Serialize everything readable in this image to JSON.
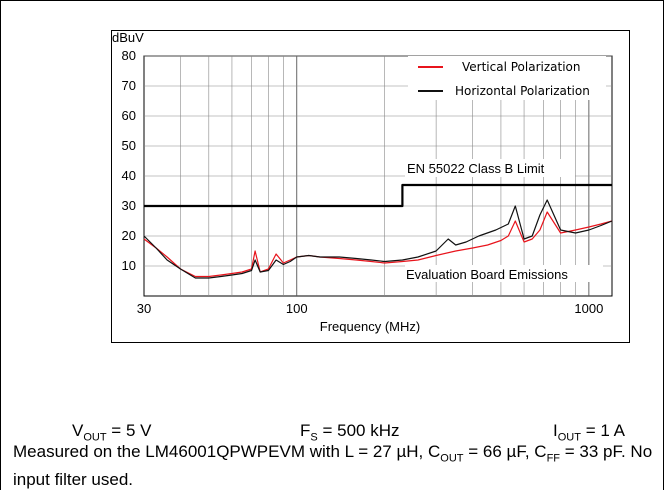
{
  "chart_data": {
    "type": "line",
    "y_unit_label": "dBuV",
    "xlabel": "Frequency (MHz)",
    "xscale": "log",
    "xlim": [
      30,
      1200
    ],
    "ylim": [
      0,
      80
    ],
    "x_ticks": [
      30,
      100,
      1000
    ],
    "x_tick_labels": [
      "30",
      "100",
      "1000"
    ],
    "y_ticks": [
      10,
      20,
      30,
      40,
      50,
      60,
      70,
      80
    ],
    "y_tick_labels": [
      "10",
      "20",
      "30",
      "40",
      "50",
      "60",
      "70",
      "80"
    ],
    "grid": true,
    "legend_position": "top-right",
    "colors": {
      "vertical": "#e8141c",
      "horizontal": "#111111",
      "limit": "#000000"
    },
    "series": [
      {
        "name": "Vertical Polarization",
        "color": "#e8141c",
        "x": [
          30,
          33,
          36,
          40,
          45,
          50,
          55,
          60,
          65,
          70,
          72,
          75,
          80,
          85,
          90,
          95,
          100,
          110,
          120,
          140,
          160,
          180,
          200,
          230,
          260,
          300,
          350,
          400,
          450,
          500,
          530,
          560,
          600,
          640,
          680,
          720,
          800,
          900,
          1000,
          1100,
          1200
        ],
        "y": [
          19,
          16,
          13,
          9,
          6.5,
          6.5,
          7,
          7.5,
          8,
          9,
          15,
          8,
          9,
          14,
          11,
          12,
          13,
          13.5,
          13,
          12.5,
          12,
          11.5,
          11,
          11.5,
          12,
          13.5,
          15,
          16,
          17,
          18.5,
          20,
          25,
          18,
          19,
          22,
          28,
          21,
          22,
          23,
          24,
          25
        ]
      },
      {
        "name": "Horizontal Polarization",
        "color": "#111111",
        "x": [
          30,
          33,
          36,
          40,
          45,
          50,
          55,
          60,
          65,
          70,
          72,
          75,
          80,
          85,
          90,
          95,
          100,
          110,
          120,
          140,
          160,
          180,
          200,
          230,
          260,
          300,
          330,
          350,
          380,
          420,
          480,
          530,
          560,
          600,
          640,
          680,
          720,
          800,
          900,
          1000,
          1100,
          1200
        ],
        "y": [
          20,
          16,
          12,
          9,
          6,
          6,
          6.5,
          7,
          7.5,
          8.5,
          12,
          8,
          8.5,
          12,
          10.5,
          11.5,
          13,
          13.5,
          13,
          13,
          12.5,
          12,
          11.5,
          12,
          13,
          15,
          19,
          17,
          18,
          20,
          22,
          24,
          30,
          19,
          20,
          27,
          32,
          22,
          21,
          22,
          23.5,
          25
        ]
      },
      {
        "name": "EN 55022 Class B Limit",
        "color": "#000000",
        "x": [
          30,
          230,
          230,
          1200
        ],
        "y": [
          30,
          30,
          37,
          37
        ]
      }
    ],
    "annotations": [
      {
        "text": "EN 55022 Class B Limit"
      },
      {
        "text": "Evaluation Board Emissions"
      }
    ]
  },
  "conditions": [
    {
      "main": "V",
      "sub": "OUT",
      "rest": " = 5 V"
    },
    {
      "main": "F",
      "sub": "S",
      "rest": " = 500 kHz"
    },
    {
      "main": "I",
      "sub": "OUT",
      "rest": " = 1 A"
    }
  ],
  "caption": {
    "p1": "Measured on the LM46001QPWPEVM with L = 27 µH, C",
    "s1": "OUT",
    "p2": " = 66 µF, C",
    "s2": "FF",
    "p3": " = 33 pF. No input filter used."
  }
}
